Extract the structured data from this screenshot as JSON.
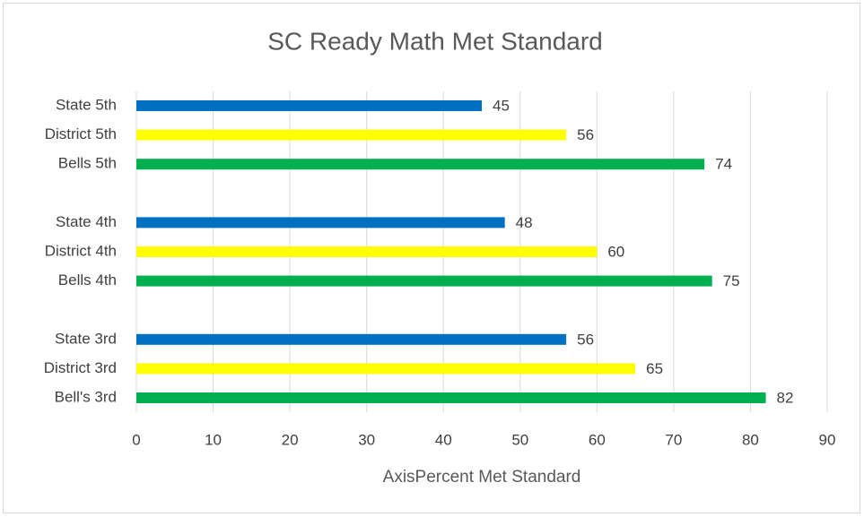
{
  "chart_data": {
    "type": "barh",
    "title": "SC Ready Math Met Standard",
    "categories": [
      "State 5th",
      "District 5th",
      "Bells 5th",
      null,
      "State 4th",
      "District 4th",
      "Bells 4th",
      null,
      "State 3rd",
      "District 3rd",
      "Bell's 3rd"
    ],
    "values": [
      45,
      56,
      74,
      null,
      48,
      60,
      75,
      null,
      56,
      65,
      82
    ],
    "colors": [
      "#0070c0",
      "#ffff00",
      "#00b050",
      null,
      "#0070c0",
      "#ffff00",
      "#00b050",
      null,
      "#0070c0",
      "#ffff00",
      "#00b050"
    ],
    "xlim": [
      0,
      90
    ],
    "xticks": [
      0,
      10,
      20,
      30,
      40,
      50,
      60,
      70,
      80,
      90
    ],
    "xlabel": "AxisPercent Met Standard",
    "grid": true
  }
}
